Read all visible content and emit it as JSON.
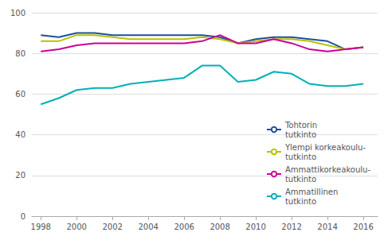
{
  "chart_data": {
    "type": "line",
    "x": [
      1998,
      1999,
      2000,
      2001,
      2002,
      2003,
      2004,
      2005,
      2006,
      2007,
      2008,
      2009,
      2010,
      2011,
      2012,
      2013,
      2014,
      2015,
      2016
    ],
    "series": [
      {
        "name": "Tohtorin\ntutkinto",
        "color": "#1f4e9c",
        "values": [
          89,
          88,
          90,
          90,
          89,
          89,
          89,
          89,
          89,
          89,
          88,
          85,
          87,
          88,
          88,
          87,
          86,
          82,
          83
        ]
      },
      {
        "name": "Ylempi korkeakoulu-\ntutkinto",
        "color": "#b5c400",
        "values": [
          86,
          86,
          89,
          89,
          88,
          87,
          87,
          87,
          87,
          88,
          87,
          85,
          86,
          87,
          87,
          86,
          84,
          82,
          83
        ]
      },
      {
        "name": "Ammattikorkeakoulu-\ntutkinto",
        "color": "#cc0099",
        "values": [
          81,
          82,
          84,
          85,
          85,
          85,
          85,
          85,
          85,
          86,
          89,
          85,
          85,
          87,
          85,
          82,
          81,
          82,
          83
        ]
      },
      {
        "name": "Ammatillinen\ntutkinto",
        "color": "#00b0b9",
        "values": [
          55,
          58,
          62,
          63,
          63,
          65,
          66,
          67,
          68,
          74,
          74,
          66,
          67,
          71,
          70,
          65,
          64,
          64,
          65
        ]
      }
    ],
    "xlim": [
      1997.5,
      2016.8
    ],
    "xticks": [
      1998,
      2000,
      2002,
      2004,
      2006,
      2008,
      2010,
      2012,
      2014,
      2016
    ],
    "ylim": [
      0,
      100
    ],
    "yticks": [
      0,
      20,
      40,
      60,
      80,
      100
    ],
    "grid": true,
    "legend": "lower right"
  }
}
